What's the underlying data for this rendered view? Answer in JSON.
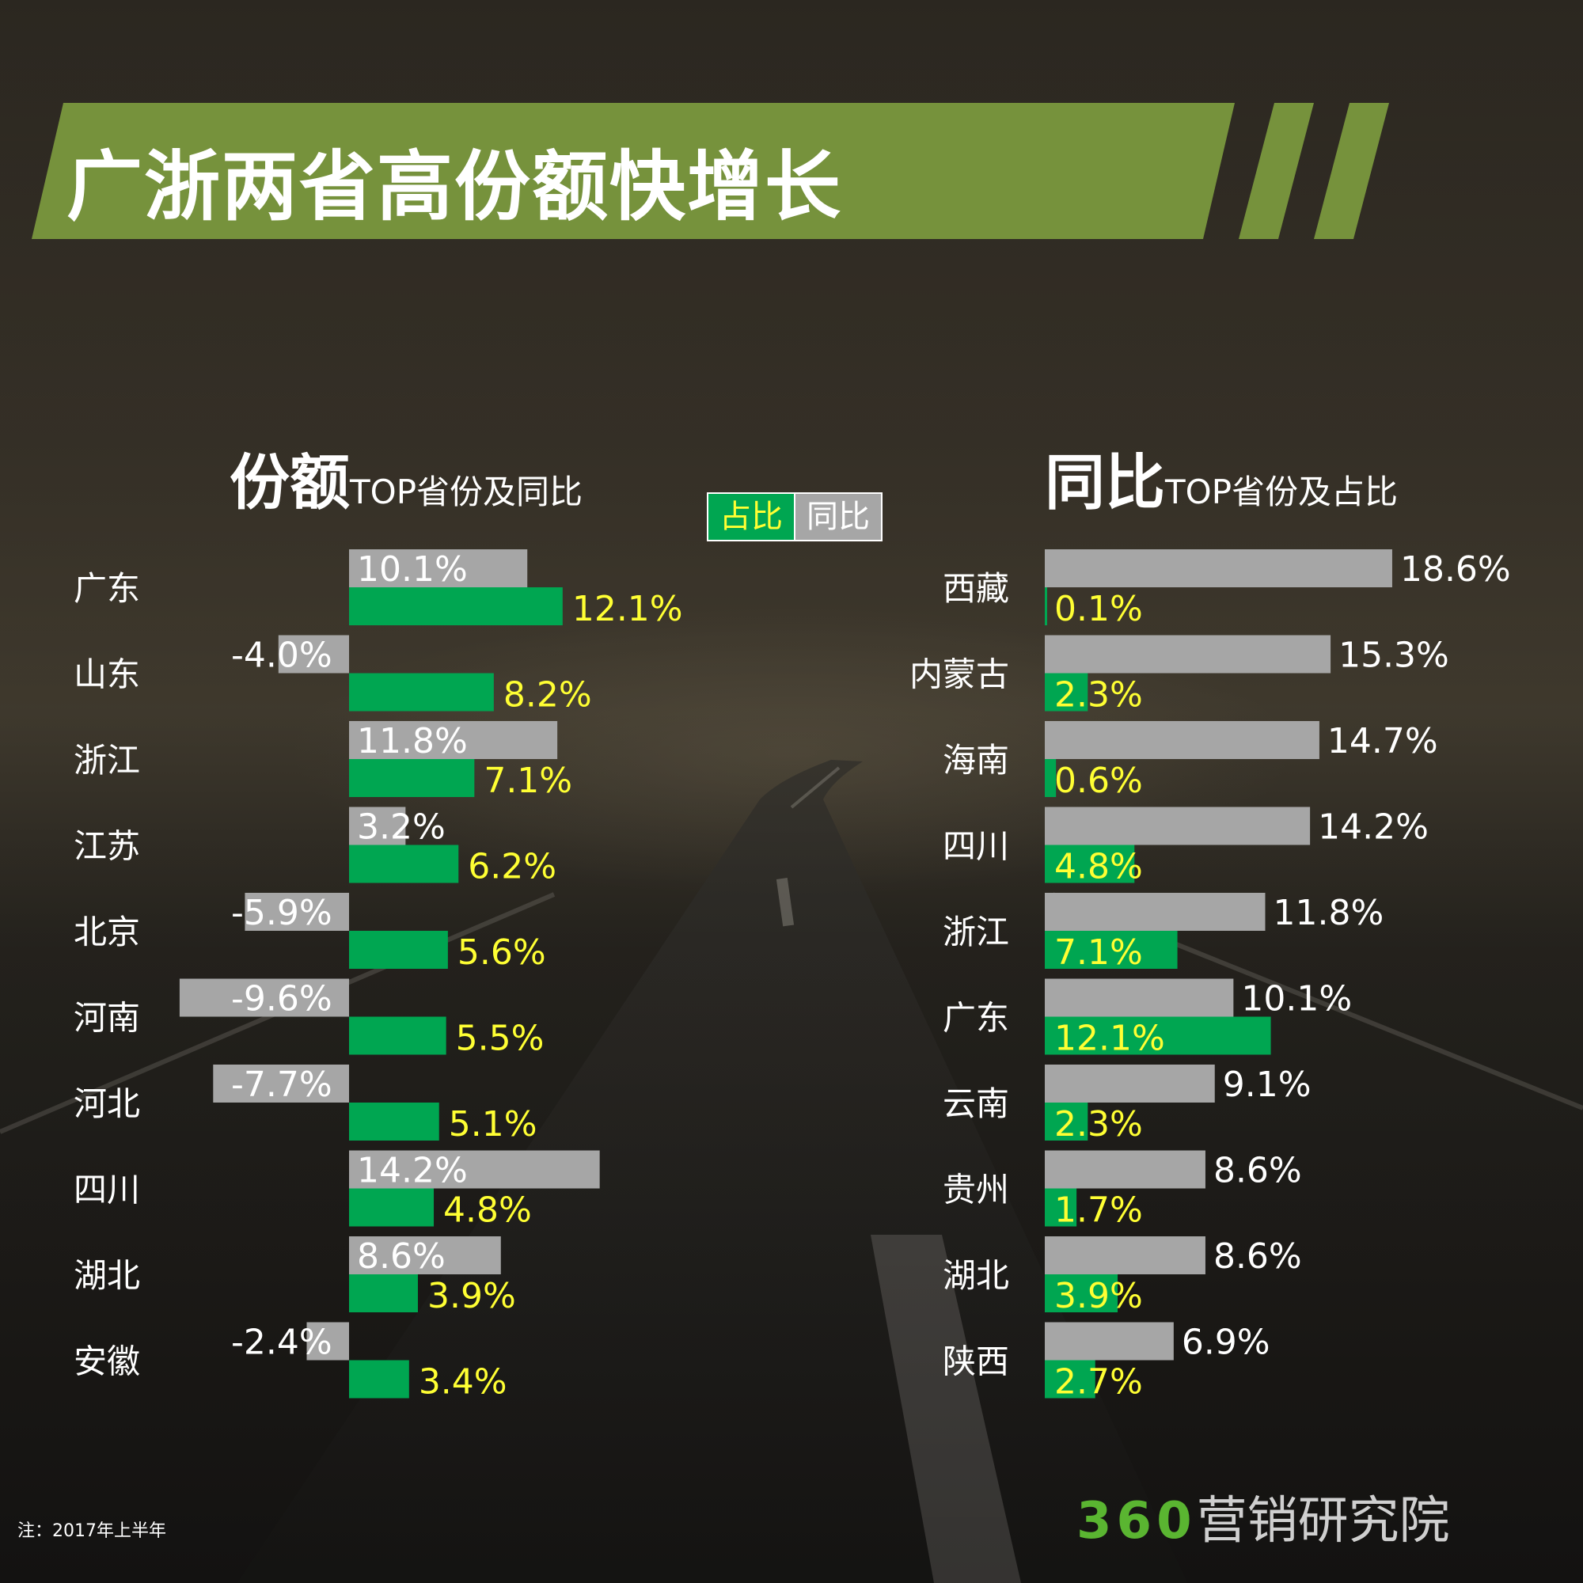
{
  "title": "广浙两省高份额快增长",
  "left_heading": {
    "big": "份额",
    "small": "TOP省份及同比"
  },
  "right_heading": {
    "big": "同比",
    "small": "TOP省份及占比"
  },
  "legend": {
    "share_label": "占比",
    "yoy_label": "同比",
    "share_color": "#00a651",
    "yoy_color": "#a6a6a6",
    "share_text_color": "#ffff33"
  },
  "note": "注：2017年上半年",
  "brand": {
    "number": "360",
    "text": "营销研究院",
    "number_color": "#5ab531"
  },
  "chart_data": [
    {
      "type": "bar",
      "orientation": "horizontal",
      "sorted_by": "占比",
      "categories": [
        "广东",
        "山东",
        "浙江",
        "江苏",
        "北京",
        "河南",
        "河北",
        "四川",
        "湖北",
        "安徽"
      ],
      "series": [
        {
          "name": "同比",
          "values": [
            10.1,
            -4.0,
            11.8,
            3.2,
            -5.9,
            -9.6,
            -7.7,
            14.2,
            8.6,
            -2.4
          ],
          "labels": [
            "10.1%",
            "-4.0%",
            "11.8%",
            "3.2%",
            "-5.9%",
            "-9.6%",
            "-7.7%",
            "14.2%",
            "8.6%",
            "-2.4%"
          ],
          "color": "#a6a6a6"
        },
        {
          "name": "占比",
          "values": [
            12.1,
            8.2,
            7.1,
            6.2,
            5.6,
            5.5,
            5.1,
            4.8,
            3.9,
            3.4
          ],
          "labels": [
            "12.1%",
            "8.2%",
            "7.1%",
            "6.2%",
            "5.6%",
            "5.5%",
            "5.1%",
            "4.8%",
            "3.9%",
            "3.4%"
          ],
          "color": "#00a651"
        }
      ]
    },
    {
      "type": "bar",
      "orientation": "horizontal",
      "sorted_by": "同比",
      "categories": [
        "西藏",
        "内蒙古",
        "海南",
        "四川",
        "浙江",
        "广东",
        "云南",
        "贵州",
        "湖北",
        "陕西"
      ],
      "series": [
        {
          "name": "同比",
          "values": [
            18.6,
            15.3,
            14.7,
            14.2,
            11.8,
            10.1,
            9.1,
            8.6,
            8.6,
            6.9
          ],
          "labels": [
            "18.6%",
            "15.3%",
            "14.7%",
            "14.2%",
            "11.8%",
            "10.1%",
            "9.1%",
            "8.6%",
            "8.6%",
            "6.9%"
          ],
          "color": "#a6a6a6"
        },
        {
          "name": "占比",
          "values": [
            0.1,
            2.3,
            0.6,
            4.8,
            7.1,
            12.1,
            2.3,
            1.7,
            3.9,
            2.7
          ],
          "labels": [
            "0.1%",
            "2.3%",
            "0.6%",
            "4.8%",
            "7.1%",
            "12.1%",
            "2.3%",
            "1.7%",
            "3.9%",
            "2.7%"
          ],
          "color": "#00a651"
        }
      ]
    }
  ]
}
